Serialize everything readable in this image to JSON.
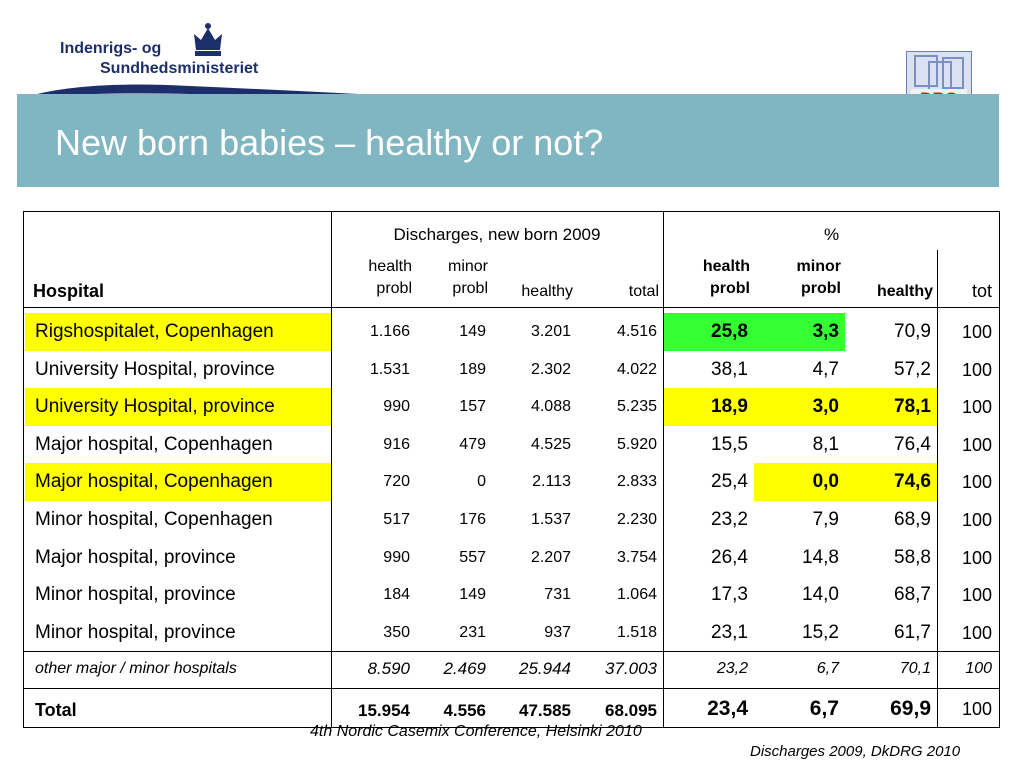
{
  "header": {
    "ministry_line1": "Indenrigs- og",
    "ministry_line2": "Sundhedsministeriet",
    "drg_logo_text": "DRG",
    "title": "New born babies – healthy or not?"
  },
  "table": {
    "group_headers": {
      "discharges": "Discharges, new born 2009",
      "percent": "%"
    },
    "col_headers": {
      "hospital": "Hospital",
      "health_probl_1": "health",
      "health_probl_2": "probl",
      "minor_probl_1": "minor",
      "minor_probl_2": "probl",
      "healthy": "healthy",
      "total": "total",
      "pct_health_1": "health",
      "pct_health_2": "probl",
      "pct_minor_1": "minor",
      "pct_minor_2": "probl",
      "pct_healthy": "healthy",
      "pct_tot": "tot"
    },
    "rows": [
      {
        "hospital": "Rigshospitalet, Copenhagen",
        "health": "1.166",
        "minor": "149",
        "healthy": "3.201",
        "total": "4.516",
        "p_health": "25,8",
        "p_minor": "3,3",
        "p_healthy": "70,9",
        "p_tot": "100"
      },
      {
        "hospital": "University Hospital, province",
        "health": "1.531",
        "minor": "189",
        "healthy": "2.302",
        "total": "4.022",
        "p_health": "38,1",
        "p_minor": "4,7",
        "p_healthy": "57,2",
        "p_tot": "100"
      },
      {
        "hospital": "University Hospital, province",
        "health": "990",
        "minor": "157",
        "healthy": "4.088",
        "total": "5.235",
        "p_health": "18,9",
        "p_minor": "3,0",
        "p_healthy": "78,1",
        "p_tot": "100"
      },
      {
        "hospital": "Major hospital, Copenhagen",
        "health": "916",
        "minor": "479",
        "healthy": "4.525",
        "total": "5.920",
        "p_health": "15,5",
        "p_minor": "8,1",
        "p_healthy": "76,4",
        "p_tot": "100"
      },
      {
        "hospital": "Major hospital, Copenhagen",
        "health": "720",
        "minor": "0",
        "healthy": "2.113",
        "total": "2.833",
        "p_health": "25,4",
        "p_minor": "0,0",
        "p_healthy": "74,6",
        "p_tot": "100"
      },
      {
        "hospital": "Minor hospital, Copenhagen",
        "health": "517",
        "minor": "176",
        "healthy": "1.537",
        "total": "2.230",
        "p_health": "23,2",
        "p_minor": "7,9",
        "p_healthy": "68,9",
        "p_tot": "100"
      },
      {
        "hospital": "Major hospital, province",
        "health": "990",
        "minor": "557",
        "healthy": "2.207",
        "total": "3.754",
        "p_health": "26,4",
        "p_minor": "14,8",
        "p_healthy": "58,8",
        "p_tot": "100"
      },
      {
        "hospital": "Minor hospital, province",
        "health": "184",
        "minor": "149",
        "healthy": "731",
        "total": "1.064",
        "p_health": "17,3",
        "p_minor": "14,0",
        "p_healthy": "68,7",
        "p_tot": "100"
      },
      {
        "hospital": "Minor hospital, province",
        "health": "350",
        "minor": "231",
        "healthy": "937",
        "total": "1.518",
        "p_health": "23,1",
        "p_minor": "15,2",
        "p_healthy": "61,7",
        "p_tot": "100"
      }
    ],
    "other_row": {
      "hospital": "other major / minor hospitals",
      "health": "8.590",
      "minor": "2.469",
      "healthy": "25.944",
      "total": "37.003",
      "p_health": "23,2",
      "p_minor": "6,7",
      "p_healthy": "70,1",
      "p_tot": "100"
    },
    "total_row": {
      "hospital": "Total",
      "health": "15.954",
      "minor": "4.556",
      "healthy": "47.585",
      "total": "68.095",
      "p_health": "23,4",
      "p_minor": "6,7",
      "p_healthy": "69,9",
      "p_tot": "100"
    }
  },
  "footer": {
    "conference": "4th Nordic Casemix Conference, Helsinki 2010",
    "source": "Discharges 2009, DkDRG 2010"
  },
  "colors": {
    "banner": "#7fb6c2",
    "highlight_yellow": "#ffff00",
    "highlight_green": "#33ff33"
  }
}
